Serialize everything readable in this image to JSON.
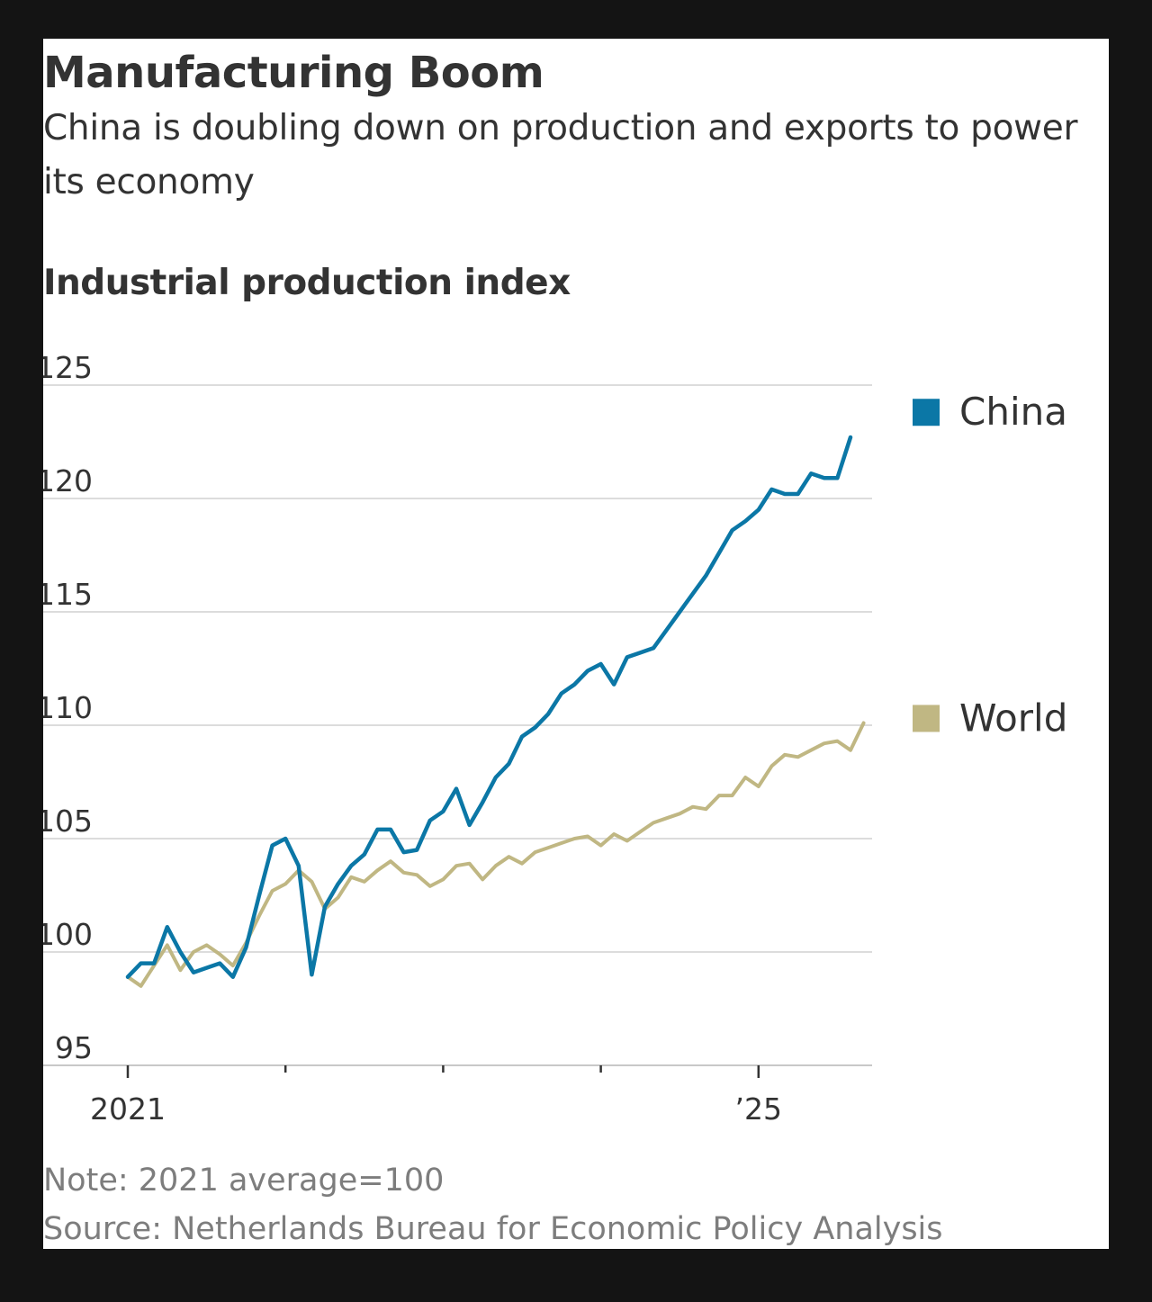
{
  "header": {
    "title": "Manufacturing Boom",
    "subtitle": "China is doubling down on production and exports to power its economy"
  },
  "footer": {
    "note": "Note: 2021 average=100",
    "source": "Source: Netherlands Bureau for Economic Policy Analysis"
  },
  "colors": {
    "china": "#0b77a6",
    "world": "#c0b783",
    "grid": "#dcdcdc",
    "axis_text": "#333333"
  },
  "chart_data": {
    "type": "line",
    "title": "Industrial production index",
    "xlabel": "",
    "ylabel": "",
    "ylim": [
      95,
      125
    ],
    "yticks": [
      95,
      100,
      105,
      110,
      115,
      120,
      125
    ],
    "ytick_labels": [
      "95",
      "100",
      "105",
      "110",
      "115",
      "120",
      "125"
    ],
    "x_start": "2021-01",
    "x_count": 58,
    "xticks": [
      0,
      12,
      24,
      36,
      48
    ],
    "xtick_labels": [
      {
        "index": 0,
        "label": "2021"
      },
      {
        "index": 48,
        "label": "’25"
      }
    ],
    "legend_position": "right",
    "series": [
      {
        "name": "China",
        "color_key": "china",
        "values": [
          98.9,
          99.5,
          99.5,
          101.1,
          100.0,
          99.1,
          99.3,
          99.5,
          98.9,
          100.2,
          102.5,
          104.7,
          105.0,
          103.8,
          99.0,
          102.0,
          103.0,
          103.8,
          104.3,
          105.4,
          105.4,
          104.4,
          104.5,
          105.8,
          106.2,
          107.2,
          105.6,
          106.6,
          107.7,
          108.3,
          109.5,
          109.9,
          110.5,
          111.4,
          111.8,
          112.4,
          112.7,
          111.8,
          113.0,
          113.2,
          113.4,
          114.2,
          115.0,
          115.8,
          116.6,
          117.6,
          118.6,
          119.0,
          119.5,
          120.4,
          120.2,
          120.2,
          121.1,
          120.9,
          120.9,
          122.7
        ]
      },
      {
        "name": "World",
        "color_key": "world",
        "values": [
          98.9,
          98.5,
          99.4,
          100.3,
          99.2,
          100.0,
          100.3,
          99.9,
          99.4,
          100.4,
          101.6,
          102.7,
          103.0,
          103.6,
          103.1,
          101.9,
          102.4,
          103.3,
          103.1,
          103.6,
          104.0,
          103.5,
          103.4,
          102.9,
          103.2,
          103.8,
          103.9,
          103.2,
          103.8,
          104.2,
          103.9,
          104.4,
          104.6,
          104.8,
          105.0,
          105.1,
          104.7,
          105.2,
          104.9,
          105.3,
          105.7,
          105.9,
          106.1,
          106.4,
          106.3,
          106.9,
          106.9,
          107.7,
          107.3,
          108.2,
          108.7,
          108.6,
          108.9,
          109.2,
          109.3,
          108.9,
          110.1
        ]
      }
    ]
  }
}
